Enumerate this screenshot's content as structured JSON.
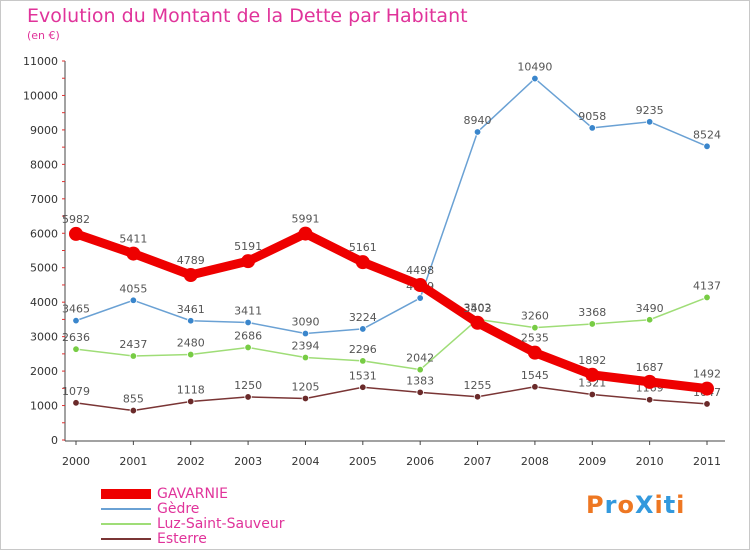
{
  "header": {
    "title": "Evolution du Montant de la Dette par Habitant",
    "unit": "(en €)"
  },
  "logo": {
    "text": "ProXiti",
    "colors": [
      "#ee7722",
      "#3399dd",
      "#ee7722",
      "#3399dd",
      "#ee7722",
      "#3399dd",
      "#ee7722"
    ]
  },
  "chart_data": {
    "type": "line",
    "title": "Evolution du Montant de la Dette par Habitant",
    "subtitle": "(en €)",
    "x": [
      "2000",
      "2001",
      "2002",
      "2003",
      "2004",
      "2005",
      "2006",
      "2007",
      "2008",
      "2009",
      "2010",
      "2011"
    ],
    "ylim": [
      0,
      11000
    ],
    "yticks": [
      "0",
      "1000",
      "2000",
      "3000",
      "4000",
      "5000",
      "6000",
      "7000",
      "8000",
      "9000",
      "10000",
      "11000"
    ],
    "grid": false,
    "legend_position": "bottom-left",
    "series": [
      {
        "name": "GAVARNIE",
        "color": "#ee0000",
        "marker_color": "#ee0000",
        "emphasis": true,
        "values": [
          5982,
          5411,
          4789,
          5191,
          5991,
          5161,
          4498,
          3403,
          2535,
          1892,
          1687,
          1492
        ]
      },
      {
        "name": "Gèdre",
        "color": "#6aa1d4",
        "marker_color": "#3a86cc",
        "values": [
          3465,
          4055,
          3461,
          3411,
          3090,
          3224,
          4119,
          8940,
          10490,
          9058,
          9235,
          8524
        ]
      },
      {
        "name": "Luz-Saint-Sauveur",
        "color": "#9fdd77",
        "marker_color": "#77cc44",
        "values": [
          2636,
          2437,
          2480,
          2686,
          2394,
          2296,
          2042,
          3502,
          3260,
          3368,
          3490,
          4137
        ]
      },
      {
        "name": "Esterre",
        "color": "#7a3535",
        "marker_color": "#6a2a2a",
        "values": [
          1079,
          855,
          1118,
          1250,
          1205,
          1531,
          1383,
          1255,
          1545,
          1321,
          1169,
          1047
        ]
      }
    ]
  }
}
